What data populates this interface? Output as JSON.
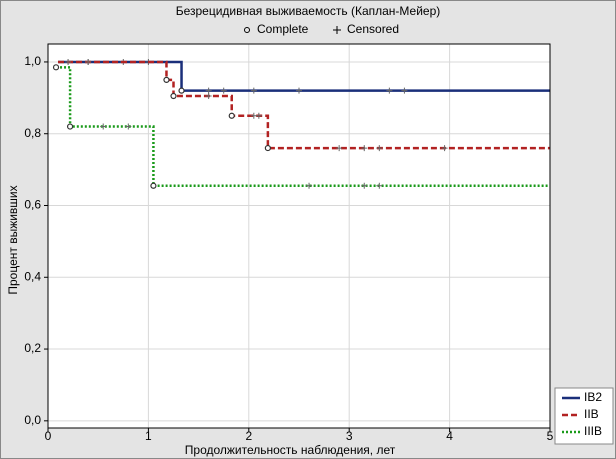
{
  "chart_data": {
    "type": "km",
    "title": "Безрецидивная выживаемость (Каплан-Мейер)",
    "marker_legend": [
      "Complete",
      "Censored"
    ],
    "x_label": "Продолжительность наблюдения, лет",
    "y_label": "Процент выживших",
    "xlim": [
      0,
      5
    ],
    "xticks": [
      0,
      1,
      2,
      3,
      4,
      5
    ],
    "ylim": [
      -0.02,
      1.05
    ],
    "yticks": [
      {
        "value": 0,
        "label": "0,0"
      },
      {
        "value": 0.2,
        "label": "0,2"
      },
      {
        "value": 0.4,
        "label": "0,4"
      },
      {
        "value": 0.6,
        "label": "0,6"
      },
      {
        "value": 0.8,
        "label": "0,8"
      },
      {
        "value": 1,
        "label": "1,0"
      }
    ],
    "grid": true,
    "legend": "lower right",
    "series": [
      {
        "name": "IB2",
        "color": "#1a2f7a",
        "style": "solid",
        "x": [
          0.1,
          1.33,
          5
        ],
        "values": [
          1,
          0.92,
          0.92
        ],
        "complete_x": [
          1.33
        ],
        "complete_values": [
          0.92
        ],
        "censored_x": [
          0.4,
          0.75,
          1.0,
          1.6,
          1.75,
          2.05,
          2.5,
          3.4,
          3.55
        ],
        "censored_values": [
          1,
          1,
          1,
          0.92,
          0.92,
          0.92,
          0.92,
          0.92,
          0.92
        ]
      },
      {
        "name": "IIB",
        "color": "#b22222",
        "style": "dashed",
        "x": [
          0.1,
          1.18,
          1.25,
          1.83,
          2.19,
          5
        ],
        "values": [
          1,
          0.95,
          0.905,
          0.85,
          0.76,
          0.76
        ],
        "complete_x": [
          1.18,
          1.25,
          1.83,
          2.19
        ],
        "complete_values": [
          0.95,
          0.905,
          0.85,
          0.76
        ],
        "censored_x": [
          0.2,
          0.4,
          1.6,
          2.05,
          2.1,
          2.9,
          3.15,
          3.3,
          3.95
        ],
        "censored_values": [
          1,
          1,
          0.905,
          0.85,
          0.85,
          0.76,
          0.76,
          0.76,
          0.76
        ]
      },
      {
        "name": "IIIB",
        "color": "#1a9a1a",
        "style": "dotted",
        "x": [
          0.08,
          0.22,
          1.05,
          5
        ],
        "values": [
          0.985,
          0.82,
          0.655,
          0.655
        ],
        "complete_x": [
          0.08,
          0.22,
          1.05
        ],
        "complete_values": [
          0.985,
          0.82,
          0.655
        ],
        "censored_x": [
          0.55,
          0.8,
          2.6,
          3.15,
          3.3
        ],
        "censored_values": [
          0.82,
          0.82,
          0.655,
          0.655,
          0.655
        ]
      }
    ]
  }
}
